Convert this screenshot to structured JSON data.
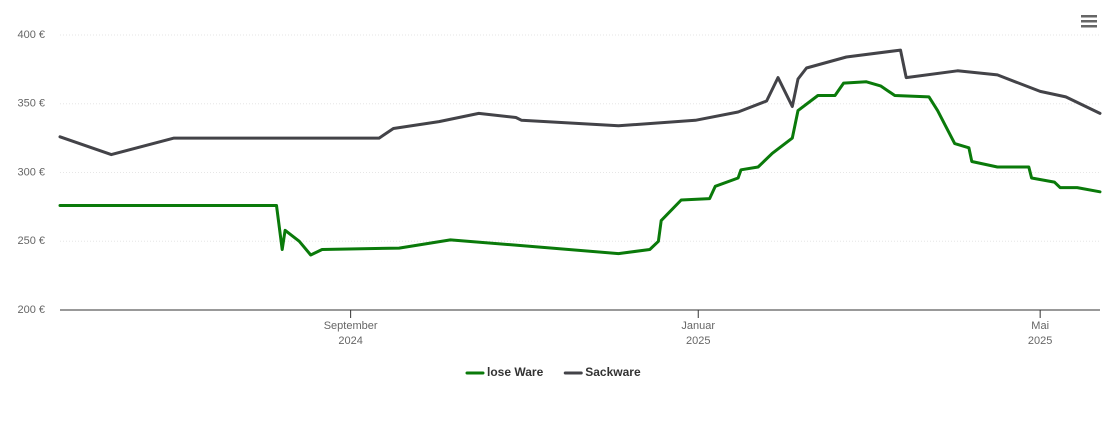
{
  "chart_data": {
    "type": "line",
    "xlim": [
      "2024-05-22",
      "2025-05-22"
    ],
    "xticks": [
      {
        "value": "2024-09-01",
        "label": [
          "September",
          "2024"
        ]
      },
      {
        "value": "2025-01-01",
        "label": [
          "Januar",
          "2025"
        ]
      },
      {
        "value": "2025-05-01",
        "label": [
          "Mai",
          "2025"
        ]
      }
    ],
    "ylim": [
      200,
      400
    ],
    "yticks": [
      {
        "value": 200,
        "label": "200 €"
      },
      {
        "value": 250,
        "label": "250 €"
      },
      {
        "value": 300,
        "label": "300 €"
      },
      {
        "value": 350,
        "label": "350 €"
      },
      {
        "value": 400,
        "label": "400 €"
      }
    ],
    "grid": true,
    "legend": "bottom",
    "series": [
      {
        "name": "lose Ware",
        "color": "#0a7a0a",
        "x": [
          "2024-05-22",
          "2024-08-06",
          "2024-08-08",
          "2024-08-09",
          "2024-08-14",
          "2024-08-18",
          "2024-08-22",
          "2024-09-18",
          "2024-10-06",
          "2024-10-30",
          "2024-12-04",
          "2024-12-15",
          "2024-12-18",
          "2024-12-19",
          "2024-12-26",
          "2025-01-05",
          "2025-01-07",
          "2025-01-15",
          "2025-01-16",
          "2025-01-22",
          "2025-01-27",
          "2025-02-03",
          "2025-02-05",
          "2025-02-12",
          "2025-02-18",
          "2025-02-21",
          "2025-03-01",
          "2025-03-06",
          "2025-03-11",
          "2025-03-23",
          "2025-03-26",
          "2025-04-01",
          "2025-04-06",
          "2025-04-07",
          "2025-04-16",
          "2025-04-27",
          "2025-04-28",
          "2025-05-06",
          "2025-05-08",
          "2025-05-14",
          "2025-05-22"
        ],
        "values": [
          276,
          276,
          244,
          258,
          250,
          240,
          244,
          245,
          251,
          247,
          241,
          244,
          250,
          265,
          280,
          281,
          290,
          296,
          302,
          304,
          314,
          325,
          345,
          356,
          356,
          365,
          366,
          363,
          356,
          355,
          345,
          321,
          318,
          308,
          304,
          304,
          296,
          293,
          289,
          289,
          286
        ]
      },
      {
        "name": "Sackware",
        "color": "#434348",
        "x": [
          "2024-05-22",
          "2024-06-09",
          "2024-07-01",
          "2024-09-11",
          "2024-09-16",
          "2024-10-02",
          "2024-10-16",
          "2024-10-29",
          "2024-10-31",
          "2024-12-04",
          "2024-12-31",
          "2025-01-15",
          "2025-01-25",
          "2025-01-29",
          "2025-02-03",
          "2025-02-05",
          "2025-02-08",
          "2025-02-22",
          "2025-03-13",
          "2025-03-15",
          "2025-04-02",
          "2025-04-16",
          "2025-05-01",
          "2025-05-10",
          "2025-05-22"
        ],
        "values": [
          326,
          313,
          325,
          325,
          332,
          337,
          343,
          340,
          338,
          334,
          338,
          344,
          352,
          369,
          348,
          368,
          376,
          384,
          389,
          369,
          374,
          371,
          359,
          355,
          343
        ]
      }
    ]
  }
}
